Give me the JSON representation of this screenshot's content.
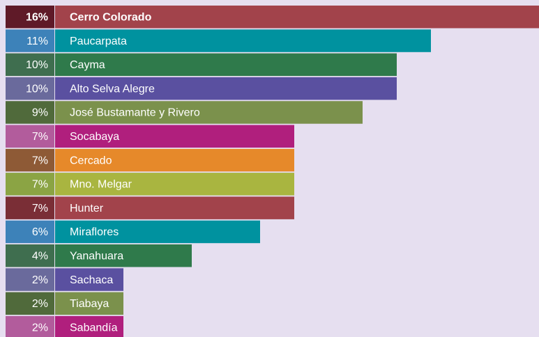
{
  "chart_data": {
    "type": "bar",
    "categories": [
      "Cerro Colorado",
      "Paucarpata",
      "Cayma",
      "Alto Selva Alegre",
      "José Bustamante y Rivero",
      "Socabaya",
      "Cercado",
      "Mno. Melgar",
      "Hunter",
      "Miraflores",
      "Yanahuara",
      "Sachaca",
      "Tiabaya",
      "Sabandía"
    ],
    "values": [
      16,
      11,
      10,
      10,
      9,
      7,
      7,
      7,
      7,
      6,
      4,
      2,
      2,
      2
    ],
    "value_labels": [
      "16%",
      "11%",
      "10%",
      "10%",
      "9%",
      "7%",
      "7%",
      "7%",
      "7%",
      "6%",
      "4%",
      "2%",
      "2%",
      "2%"
    ],
    "colors": [
      "#a2434b",
      "#00929f",
      "#2f7a4b",
      "#5a50a0",
      "#7b914c",
      "#b01f7d",
      "#e6892a",
      "#a9b540",
      "#a2434b",
      "#00929f",
      "#2f7a4b",
      "#5a50a0",
      "#7b914c",
      "#b01f7d"
    ],
    "label_colors": [
      "#5f1a28",
      "#3d82b9",
      "#3f6e4f",
      "#6a6a9c",
      "#506a3b",
      "#b25c9c",
      "#8e5a36",
      "#8ba444",
      "#7a2e36",
      "#3d82b9",
      "#3f6e4f",
      "#6a6a9c",
      "#506a3b",
      "#b25c9c"
    ]
  }
}
